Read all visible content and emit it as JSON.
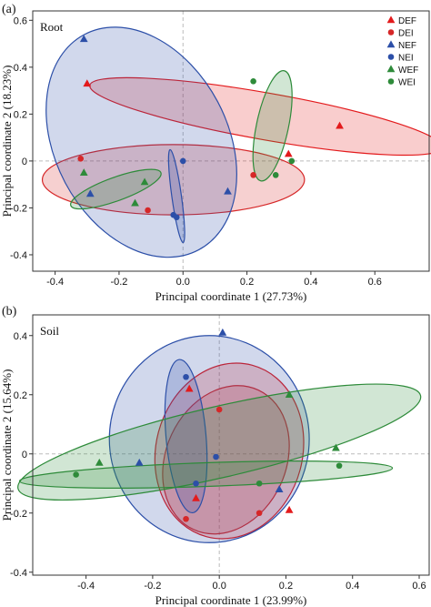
{
  "colors": {
    "DEF": "#e31a1c",
    "DEI": "#d62728",
    "NEF": "#2c4fa8",
    "NEI": "#2c4fa8",
    "WEF": "#2e8b3a",
    "WEI": "#2e8b3a"
  },
  "legend": [
    {
      "name": "DEF",
      "shape": "triangle"
    },
    {
      "name": "DEI",
      "shape": "circle"
    },
    {
      "name": "NEF",
      "shape": "triangle"
    },
    {
      "name": "NEI",
      "shape": "circle"
    },
    {
      "name": "WEF",
      "shape": "triangle"
    },
    {
      "name": "WEI",
      "shape": "circle"
    }
  ],
  "chart_data": [
    {
      "type": "scatter",
      "panel_tag": "(a)",
      "title": "Root",
      "xlabel": "Principal coordinate 1 (27.73%)",
      "ylabel": "Principal coordinate 2 (18.23%)",
      "xlim": [
        -0.47,
        0.77
      ],
      "ylim": [
        -0.47,
        0.64
      ],
      "xticks": [
        -0.4,
        -0.2,
        0.0,
        0.2,
        0.4,
        0.6
      ],
      "xtick_labels": [
        "-0.4",
        "-0.2",
        "0.0",
        "0.2",
        "0.4",
        "0.6"
      ],
      "yticks": [
        -0.4,
        -0.2,
        0.0,
        0.2,
        0.4,
        0.6
      ],
      "ytick_labels": [
        "-0.4",
        "-0.2",
        "0",
        "0.2",
        "0.4",
        "0.6"
      ],
      "legend_position": "top-right",
      "series": [
        {
          "name": "DEF",
          "points": [
            [
              -0.3,
              0.33
            ],
            [
              0.33,
              0.03
            ],
            [
              0.49,
              0.15
            ]
          ],
          "ellipse": {
            "cx": 0.26,
            "cy": 0.19,
            "rx": 0.56,
            "ry": 0.1,
            "angle": -10
          }
        },
        {
          "name": "DEI",
          "points": [
            [
              -0.32,
              0.01
            ],
            [
              -0.11,
              -0.21
            ],
            [
              0.22,
              -0.06
            ]
          ],
          "ellipse": {
            "cx": -0.03,
            "cy": -0.08,
            "rx": 0.41,
            "ry": 0.15,
            "angle": 0
          }
        },
        {
          "name": "NEF",
          "points": [
            [
              -0.31,
              0.52
            ],
            [
              -0.29,
              -0.14
            ],
            [
              0.14,
              -0.13
            ]
          ],
          "ellipse": {
            "cx": -0.13,
            "cy": 0.08,
            "rx": 0.27,
            "ry": 0.52,
            "angle": 28
          }
        },
        {
          "name": "NEI",
          "points": [
            [
              -0.03,
              -0.23
            ],
            [
              -0.02,
              -0.24
            ],
            [
              0.0,
              0.0
            ]
          ],
          "ellipse": {
            "cx": -0.02,
            "cy": -0.15,
            "rx": 0.015,
            "ry": 0.2,
            "angle": 8
          }
        },
        {
          "name": "WEF",
          "points": [
            [
              -0.31,
              -0.05
            ],
            [
              -0.15,
              -0.18
            ],
            [
              -0.12,
              -0.09
            ]
          ],
          "ellipse": {
            "cx": -0.21,
            "cy": -0.12,
            "rx": 0.15,
            "ry": 0.05,
            "angle": 20
          }
        },
        {
          "name": "WEI",
          "points": [
            [
              0.22,
              0.34
            ],
            [
              0.29,
              -0.06
            ],
            [
              0.34,
              0.0
            ]
          ],
          "ellipse": {
            "cx": 0.28,
            "cy": 0.15,
            "rx": 0.05,
            "ry": 0.24,
            "angle": -12
          }
        }
      ]
    },
    {
      "type": "scatter",
      "panel_tag": "(b)",
      "title": "Soil",
      "xlabel": "Principal coordinate 1 (23.99%)",
      "ylabel": "Principal coordinate 2 (15.64%)",
      "xlim": [
        -0.56,
        0.63
      ],
      "ylim": [
        -0.41,
        0.47
      ],
      "xticks": [
        -0.4,
        -0.2,
        0.0,
        0.2,
        0.4,
        0.6
      ],
      "xtick_labels": [
        "-0.4",
        "-0.2",
        "0.0",
        "0.2",
        "0.4",
        "0.6"
      ],
      "yticks": [
        -0.4,
        -0.2,
        0.0,
        0.2,
        0.4
      ],
      "ytick_labels": [
        "-0.4",
        "-0.2",
        "0",
        "0.2",
        "0.4"
      ],
      "series": [
        {
          "name": "DEF",
          "points": [
            [
              -0.09,
              0.22
            ],
            [
              -0.07,
              -0.15
            ],
            [
              0.21,
              -0.19
            ]
          ],
          "ellipse": {
            "cx": 0.03,
            "cy": 0.01,
            "rx": 0.22,
            "ry": 0.3,
            "angle": -15
          }
        },
        {
          "name": "DEI",
          "points": [
            [
              -0.1,
              -0.22
            ],
            [
              0.0,
              0.15
            ],
            [
              0.12,
              -0.2
            ]
          ],
          "ellipse": {
            "cx": 0.02,
            "cy": -0.02,
            "rx": 0.18,
            "ry": 0.26,
            "angle": -25
          }
        },
        {
          "name": "NEF",
          "points": [
            [
              0.01,
              0.41
            ],
            [
              -0.24,
              -0.03
            ],
            [
              0.18,
              -0.12
            ]
          ],
          "ellipse": {
            "cx": -0.03,
            "cy": 0.05,
            "rx": 0.3,
            "ry": 0.35,
            "angle": 0
          }
        },
        {
          "name": "NEI",
          "points": [
            [
              -0.1,
              0.26
            ],
            [
              -0.07,
              -0.1
            ],
            [
              -0.01,
              -0.01
            ]
          ],
          "ellipse": {
            "cx": -0.1,
            "cy": 0.06,
            "rx": 0.06,
            "ry": 0.26,
            "angle": 5
          }
        },
        {
          "name": "WEF",
          "points": [
            [
              -0.36,
              -0.03
            ],
            [
              0.21,
              0.2
            ],
            [
              0.35,
              0.02
            ]
          ],
          "ellipse": {
            "cx": 0.0,
            "cy": 0.04,
            "rx": 0.62,
            "ry": 0.12,
            "angle": 13
          }
        },
        {
          "name": "WEI",
          "points": [
            [
              -0.43,
              -0.07
            ],
            [
              0.12,
              -0.1
            ],
            [
              0.36,
              -0.04
            ]
          ],
          "ellipse": {
            "cx": -0.04,
            "cy": -0.07,
            "rx": 0.56,
            "ry": 0.04,
            "angle": 2
          }
        }
      ]
    }
  ]
}
